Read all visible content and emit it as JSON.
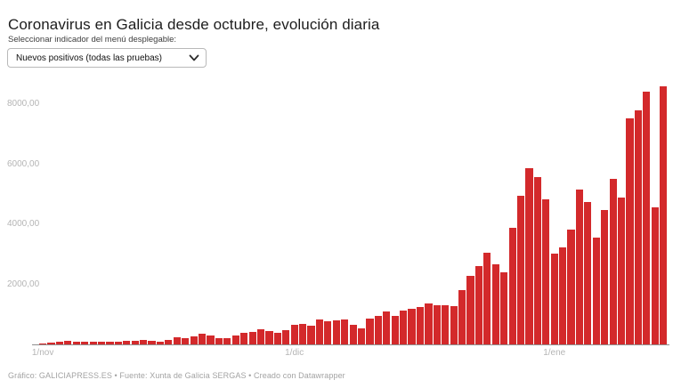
{
  "header": {
    "title": "Coronavirus en Galicia desde octubre, evolución diaria",
    "selector_label": "Seleccionar indicador del menú desplegable:",
    "selector_value": "Nuevos positivos (todas las pruebas)"
  },
  "footer": {
    "credit": "Gráfico: GALICIAPRESS.ES • Fuente: Xunta de Galicia SERGAS • Creado con Datawrapper"
  },
  "colors": {
    "bar": "#d3292b",
    "axis_line": "#8f8f8f",
    "tick_text": "#b5b5b5"
  },
  "chart_data": {
    "type": "bar",
    "title": "Nuevos positivos (todas las pruebas)",
    "xlabel": "",
    "ylabel": "",
    "ylim": [
      0,
      8700
    ],
    "grid": false,
    "legend_position": "none",
    "y_ticks": [
      {
        "value": 2000,
        "label": "2000,00"
      },
      {
        "value": 4000,
        "label": "4000,00"
      },
      {
        "value": 6000,
        "label": "6000,00"
      },
      {
        "value": 8000,
        "label": "8000,00"
      }
    ],
    "x_ticks": [
      {
        "index": 0,
        "label": "1/nov"
      },
      {
        "index": 30,
        "label": "1/dic"
      },
      {
        "index": 61,
        "label": "1/ene"
      }
    ],
    "x": [
      "1/nov",
      "2/nov",
      "3/nov",
      "4/nov",
      "5/nov",
      "6/nov",
      "7/nov",
      "8/nov",
      "9/nov",
      "10/nov",
      "11/nov",
      "12/nov",
      "13/nov",
      "14/nov",
      "15/nov",
      "16/nov",
      "17/nov",
      "18/nov",
      "19/nov",
      "20/nov",
      "21/nov",
      "22/nov",
      "23/nov",
      "24/nov",
      "25/nov",
      "26/nov",
      "27/nov",
      "28/nov",
      "29/nov",
      "30/nov",
      "1/dic",
      "2/dic",
      "3/dic",
      "4/dic",
      "5/dic",
      "6/dic",
      "7/dic",
      "8/dic",
      "9/dic",
      "10/dic",
      "11/dic",
      "12/dic",
      "13/dic",
      "14/dic",
      "15/dic",
      "16/dic",
      "17/dic",
      "18/dic",
      "19/dic",
      "20/dic",
      "21/dic",
      "22/dic",
      "23/dic",
      "24/dic",
      "25/dic",
      "26/dic",
      "27/dic",
      "28/dic",
      "29/dic",
      "30/dic",
      "31/dic",
      "1/ene",
      "2/ene",
      "3/ene",
      "4/ene",
      "5/ene",
      "6/ene",
      "7/ene",
      "8/ene",
      "9/ene",
      "10/ene",
      "11/ene",
      "12/ene",
      "13/ene",
      "14/ene"
    ],
    "values": [
      30,
      60,
      90,
      110,
      90,
      90,
      95,
      90,
      75,
      90,
      120,
      130,
      160,
      120,
      100,
      140,
      230,
      215,
      265,
      370,
      295,
      215,
      215,
      295,
      375,
      415,
      490,
      440,
      375,
      465,
      640,
      690,
      610,
      840,
      770,
      790,
      840,
      640,
      540,
      870,
      950,
      1100,
      940,
      1130,
      1190,
      1230,
      1360,
      1290,
      1300,
      1260,
      1810,
      2290,
      2620,
      3065,
      2680,
      2410,
      3870,
      4960,
      5870,
      5570,
      4830,
      3030,
      3230,
      3820,
      5160,
      4740,
      3560,
      4470,
      5510,
      4880,
      7530,
      7790,
      8420,
      4560,
      8600
    ]
  }
}
